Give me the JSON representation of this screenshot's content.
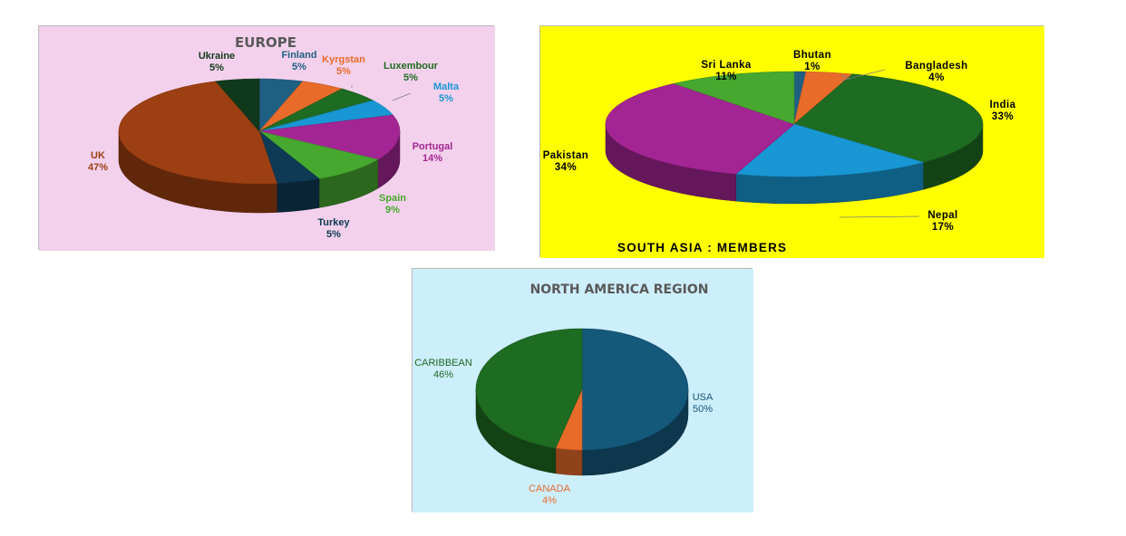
{
  "chart_data": [
    {
      "type": "pie",
      "title": "EUROPE",
      "background": "#f3d1ec",
      "title_color": "#595959",
      "slices": [
        {
          "label": "Finland",
          "value": 5,
          "color": "#1f5f82",
          "label_color": "#1f5f82"
        },
        {
          "label": "Kyrgstan",
          "value": 5,
          "color": "#e86b2a",
          "label_color": "#e86b2a"
        },
        {
          "label": "Luxembour",
          "value": 5,
          "color": "#1e6b22",
          "label_color": "#1e6b22"
        },
        {
          "label": "Malta",
          "value": 5,
          "color": "#1897d4",
          "label_color": "#1897d4"
        },
        {
          "label": "Portugal",
          "value": 14,
          "color": "#a32593",
          "label_color": "#a32593"
        },
        {
          "label": "Spain",
          "value": 9,
          "color": "#46a82e",
          "label_color": "#46a82e"
        },
        {
          "label": "Turkey",
          "value": 5,
          "color": "#0e3a55",
          "label_color": "#0e3a55"
        },
        {
          "label": "UK",
          "value": 47,
          "color": "#9c3f12",
          "label_color": "#9c3f12"
        },
        {
          "label": "Ukraine",
          "value": 5,
          "color": "#10391c",
          "label_color": "#10391c"
        }
      ],
      "percent_labels": [
        "5%",
        "5%",
        "5%",
        "5%",
        "14%",
        "9%",
        "5%",
        "47%",
        "5%"
      ]
    },
    {
      "type": "pie",
      "title": "SOUTH ASIA : MEMBERS",
      "background": "#ffff00",
      "title_color": "#000000",
      "slices": [
        {
          "label": "Bhutan",
          "value": 1,
          "color": "#1f5f82",
          "label_color": "#000000"
        },
        {
          "label": "Bangladesh",
          "value": 4,
          "color": "#e86b2a",
          "label_color": "#000000"
        },
        {
          "label": "India",
          "value": 33,
          "color": "#1e6b22",
          "label_color": "#000000"
        },
        {
          "label": "Nepal",
          "value": 17,
          "color": "#1897d4",
          "label_color": "#000000"
        },
        {
          "label": "Pakistan",
          "value": 34,
          "color": "#a32593",
          "label_color": "#000000"
        },
        {
          "label": "Sri Lanka",
          "value": 11,
          "color": "#46a82e",
          "label_color": "#000000"
        }
      ],
      "percent_labels": [
        "1%",
        "4%",
        "33%",
        "17%",
        "34%",
        "11%"
      ]
    },
    {
      "type": "pie",
      "title": "NORTH AMERICA REGION",
      "background": "#cdeefb",
      "title_color": "#595959",
      "slices": [
        {
          "label": "USA",
          "value": 50,
          "color": "#14587a",
          "label_color": "#14587a"
        },
        {
          "label": "CANADA",
          "value": 4,
          "color": "#e86b2a",
          "label_color": "#e86b2a"
        },
        {
          "label": "CARIBBEAN",
          "value": 46,
          "color": "#1e6b22",
          "label_color": "#1e6b22"
        }
      ],
      "percent_labels": [
        "50%",
        "4%",
        "46%"
      ]
    }
  ]
}
